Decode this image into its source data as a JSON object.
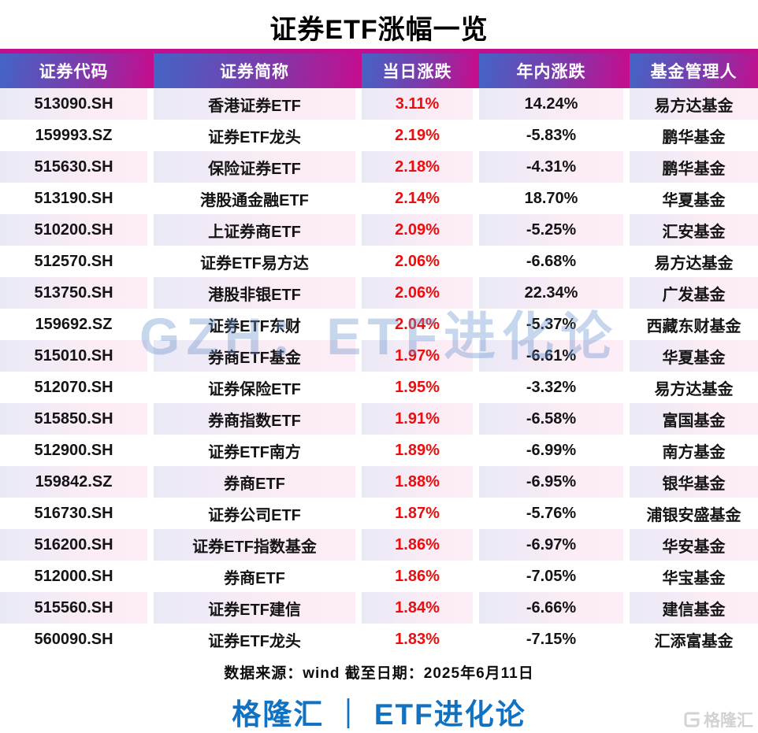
{
  "title": "证券ETF涨幅一览",
  "watermark": "GZH：ETF进化论",
  "source_note": "数据来源：wind  截至日期：2025年6月11日",
  "brand": {
    "line": "格隆汇 ｜ ETF进化论",
    "logo_text": "格隆汇"
  },
  "colors": {
    "header_magenta": "#c20f90",
    "header_blue": "#4365c6",
    "daily_change_red": "#ee0c0c",
    "brand_blue": "#1272c2",
    "odd_row_lavender": "#e9e9f6",
    "odd_row_pink": "#fbecf5",
    "watermark_blue": "rgba(104,146,205,0.38)",
    "logo_gray": "#d2d2d5"
  },
  "chart_data": {
    "type": "table",
    "title": "证券ETF涨幅一览",
    "columns": [
      "证券代码",
      "证券简称",
      "当日涨跌",
      "年内涨跌",
      "基金管理人"
    ],
    "rows": [
      [
        "513090.SH",
        "香港证券ETF",
        "3.11%",
        "14.24%",
        "易方达基金"
      ],
      [
        "159993.SZ",
        "证券ETF龙头",
        "2.19%",
        "-5.83%",
        "鹏华基金"
      ],
      [
        "515630.SH",
        "保险证券ETF",
        "2.18%",
        "-4.31%",
        "鹏华基金"
      ],
      [
        "513190.SH",
        "港股通金融ETF",
        "2.14%",
        "18.70%",
        "华夏基金"
      ],
      [
        "510200.SH",
        "上证券商ETF",
        "2.09%",
        "-5.25%",
        "汇安基金"
      ],
      [
        "512570.SH",
        "证券ETF易方达",
        "2.06%",
        "-6.68%",
        "易方达基金"
      ],
      [
        "513750.SH",
        "港股非银ETF",
        "2.06%",
        "22.34%",
        "广发基金"
      ],
      [
        "159692.SZ",
        "证券ETF东财",
        "2.04%",
        "-5.37%",
        "西藏东财基金"
      ],
      [
        "515010.SH",
        "券商ETF基金",
        "1.97%",
        "-6.61%",
        "华夏基金"
      ],
      [
        "512070.SH",
        "证券保险ETF",
        "1.95%",
        "-3.32%",
        "易方达基金"
      ],
      [
        "515850.SH",
        "券商指数ETF",
        "1.91%",
        "-6.58%",
        "富国基金"
      ],
      [
        "512900.SH",
        "证券ETF南方",
        "1.89%",
        "-6.99%",
        "南方基金"
      ],
      [
        "159842.SZ",
        "券商ETF",
        "1.88%",
        "-6.95%",
        "银华基金"
      ],
      [
        "516730.SH",
        "证券公司ETF",
        "1.87%",
        "-5.76%",
        "浦银安盛基金"
      ],
      [
        "516200.SH",
        "证券ETF指数基金",
        "1.86%",
        "-6.97%",
        "华安基金"
      ],
      [
        "512000.SH",
        "券商ETF",
        "1.86%",
        "-7.05%",
        "华宝基金"
      ],
      [
        "515560.SH",
        "证券ETF建信",
        "1.84%",
        "-6.66%",
        "建信基金"
      ],
      [
        "560090.SH",
        "证券ETF龙头",
        "1.83%",
        "-7.15%",
        "汇添富基金"
      ]
    ],
    "source": "数据来源：wind  截至日期：2025年6月11日"
  }
}
